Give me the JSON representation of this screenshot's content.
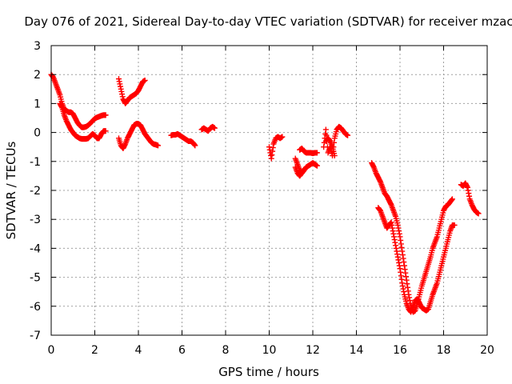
{
  "chart_data": {
    "type": "scatter",
    "title": "Day 076 of 2021, Sidereal Day-to-day VTEC variation (SDTVAR) for receiver mzac",
    "xlabel": "GPS time / hours",
    "ylabel": "SDTVAR / TECUs",
    "xlim": [
      0,
      20
    ],
    "ylim": [
      -7,
      3
    ],
    "xticks": [
      0,
      2,
      4,
      6,
      8,
      10,
      12,
      14,
      16,
      18,
      20
    ],
    "yticks": [
      3,
      2,
      1,
      0,
      -1,
      -2,
      -3,
      -4,
      -5,
      -6,
      -7
    ],
    "grid": true,
    "marker": "plus",
    "color": "#ff0000",
    "series": [
      {
        "segments": [
          [
            [
              0.0,
              2.0
            ],
            [
              0.1,
              1.9
            ],
            [
              0.2,
              1.7
            ],
            [
              0.3,
              1.5
            ],
            [
              0.4,
              1.3
            ],
            [
              0.5,
              1.0
            ],
            [
              0.6,
              0.8
            ],
            [
              0.7,
              0.75
            ],
            [
              0.8,
              0.7
            ],
            [
              0.9,
              0.7
            ],
            [
              1.0,
              0.65
            ],
            [
              1.1,
              0.5
            ],
            [
              1.2,
              0.35
            ],
            [
              1.3,
              0.25
            ],
            [
              1.4,
              0.18
            ],
            [
              1.5,
              0.18
            ],
            [
              1.6,
              0.2
            ],
            [
              1.7,
              0.25
            ],
            [
              1.8,
              0.32
            ],
            [
              1.9,
              0.4
            ],
            [
              2.0,
              0.48
            ],
            [
              2.1,
              0.52
            ],
            [
              2.2,
              0.55
            ],
            [
              2.3,
              0.58
            ],
            [
              2.4,
              0.6
            ],
            [
              2.5,
              0.6
            ]
          ],
          [
            [
              0.4,
              1.0
            ],
            [
              0.5,
              0.85
            ],
            [
              0.6,
              0.6
            ],
            [
              0.7,
              0.4
            ],
            [
              0.8,
              0.25
            ],
            [
              0.9,
              0.1
            ],
            [
              1.0,
              0.0
            ],
            [
              1.1,
              -0.1
            ],
            [
              1.2,
              -0.15
            ],
            [
              1.3,
              -0.2
            ],
            [
              1.4,
              -0.22
            ],
            [
              1.5,
              -0.22
            ],
            [
              1.6,
              -0.22
            ],
            [
              1.7,
              -0.2
            ],
            [
              1.8,
              -0.12
            ],
            [
              1.9,
              -0.05
            ],
            [
              2.0,
              -0.1
            ],
            [
              2.1,
              -0.2
            ],
            [
              2.2,
              -0.2
            ],
            [
              2.3,
              -0.05
            ],
            [
              2.4,
              0.05
            ],
            [
              2.5,
              0.05
            ]
          ],
          [
            [
              3.1,
              1.85
            ],
            [
              3.2,
              1.5
            ],
            [
              3.3,
              1.15
            ],
            [
              3.4,
              1.0
            ],
            [
              3.5,
              1.1
            ],
            [
              3.6,
              1.2
            ],
            [
              3.7,
              1.25
            ],
            [
              3.8,
              1.3
            ],
            [
              3.9,
              1.35
            ],
            [
              4.0,
              1.45
            ],
            [
              4.1,
              1.6
            ],
            [
              4.2,
              1.75
            ],
            [
              4.3,
              1.8
            ]
          ],
          [
            [
              3.1,
              -0.2
            ],
            [
              3.2,
              -0.45
            ],
            [
              3.3,
              -0.55
            ],
            [
              3.4,
              -0.4
            ],
            [
              3.5,
              -0.2
            ],
            [
              3.6,
              -0.05
            ],
            [
              3.7,
              0.1
            ],
            [
              3.8,
              0.25
            ],
            [
              3.9,
              0.3
            ],
            [
              4.0,
              0.3
            ],
            [
              4.1,
              0.25
            ],
            [
              4.2,
              0.1
            ],
            [
              4.3,
              -0.05
            ],
            [
              4.4,
              -0.15
            ],
            [
              4.5,
              -0.25
            ],
            [
              4.6,
              -0.35
            ],
            [
              4.7,
              -0.4
            ],
            [
              4.8,
              -0.42
            ],
            [
              4.9,
              -0.45
            ]
          ],
          [
            [
              5.5,
              -0.1
            ],
            [
              5.6,
              -0.08
            ],
            [
              5.7,
              -0.08
            ],
            [
              5.8,
              -0.05
            ],
            [
              5.9,
              -0.1
            ],
            [
              6.0,
              -0.15
            ],
            [
              6.1,
              -0.2
            ],
            [
              6.2,
              -0.25
            ],
            [
              6.3,
              -0.3
            ],
            [
              6.4,
              -0.3
            ],
            [
              6.5,
              -0.35
            ],
            [
              6.6,
              -0.45
            ]
          ],
          [
            [
              6.9,
              0.1
            ],
            [
              7.0,
              0.15
            ],
            [
              7.1,
              0.1
            ],
            [
              7.2,
              0.05
            ],
            [
              7.3,
              0.15
            ],
            [
              7.4,
              0.2
            ],
            [
              7.5,
              0.15
            ]
          ],
          [
            [
              10.0,
              -0.5
            ],
            [
              10.1,
              -0.9
            ],
            [
              10.2,
              -0.4
            ],
            [
              10.3,
              -0.2
            ],
            [
              10.4,
              -0.15
            ],
            [
              10.5,
              -0.2
            ],
            [
              10.6,
              -0.15
            ]
          ],
          [
            [
              11.2,
              -1.2
            ],
            [
              11.3,
              -1.4
            ],
            [
              11.4,
              -1.5
            ],
            [
              11.5,
              -1.4
            ],
            [
              11.6,
              -1.3
            ],
            [
              11.7,
              -1.2
            ],
            [
              11.8,
              -1.15
            ],
            [
              11.9,
              -1.1
            ],
            [
              12.0,
              -1.05
            ],
            [
              12.1,
              -1.1
            ],
            [
              12.2,
              -1.15
            ]
          ],
          [
            [
              11.4,
              -0.6
            ],
            [
              11.5,
              -0.55
            ],
            [
              11.6,
              -0.65
            ],
            [
              11.7,
              -0.7
            ],
            [
              11.8,
              -0.7
            ],
            [
              11.9,
              -0.7
            ],
            [
              12.0,
              -0.72
            ],
            [
              12.1,
              -0.7
            ],
            [
              12.2,
              -0.7
            ]
          ],
          [
            [
              11.2,
              -0.9
            ],
            [
              11.3,
              -1.1
            ],
            [
              11.4,
              -1.3
            ],
            [
              11.5,
              -1.4
            ],
            [
              11.6,
              -1.3
            ],
            [
              11.7,
              -1.2
            ]
          ],
          [
            [
              12.5,
              -0.5
            ],
            [
              12.6,
              0.1
            ],
            [
              12.7,
              -0.7
            ],
            [
              12.8,
              -0.5
            ],
            [
              12.9,
              -0.8
            ],
            [
              13.0,
              -0.2
            ],
            [
              13.1,
              0.1
            ],
            [
              13.2,
              0.2
            ],
            [
              13.3,
              0.15
            ],
            [
              13.4,
              0.05
            ],
            [
              13.5,
              -0.05
            ],
            [
              13.6,
              -0.1
            ]
          ],
          [
            [
              12.6,
              -0.3
            ],
            [
              12.7,
              -0.2
            ],
            [
              12.8,
              -0.3
            ],
            [
              12.9,
              -0.5
            ],
            [
              13.0,
              -0.8
            ]
          ],
          [
            [
              14.7,
              -1.05
            ],
            [
              14.8,
              -1.2
            ],
            [
              14.9,
              -1.4
            ],
            [
              15.0,
              -1.55
            ],
            [
              15.1,
              -1.7
            ],
            [
              15.2,
              -1.9
            ],
            [
              15.3,
              -2.1
            ],
            [
              15.4,
              -2.2
            ],
            [
              15.5,
              -2.35
            ],
            [
              15.6,
              -2.5
            ],
            [
              15.7,
              -2.7
            ],
            [
              15.8,
              -2.9
            ],
            [
              15.9,
              -3.2
            ],
            [
              16.0,
              -3.6
            ],
            [
              16.1,
              -4.1
            ],
            [
              16.2,
              -4.6
            ],
            [
              16.3,
              -5.1
            ],
            [
              16.4,
              -5.6
            ],
            [
              16.5,
              -6.0
            ],
            [
              16.6,
              -6.2
            ],
            [
              16.7,
              -6.15
            ],
            [
              16.8,
              -5.9
            ],
            [
              16.9,
              -5.6
            ],
            [
              17.0,
              -5.3
            ],
            [
              17.1,
              -5.05
            ],
            [
              17.2,
              -4.8
            ],
            [
              17.3,
              -4.55
            ],
            [
              17.4,
              -4.3
            ],
            [
              17.5,
              -4.0
            ],
            [
              17.6,
              -3.8
            ],
            [
              17.7,
              -3.6
            ],
            [
              17.8,
              -3.3
            ],
            [
              17.9,
              -3.0
            ],
            [
              18.0,
              -2.7
            ],
            [
              18.1,
              -2.55
            ],
            [
              18.2,
              -2.5
            ],
            [
              18.3,
              -2.4
            ],
            [
              18.4,
              -2.3
            ]
          ],
          [
            [
              15.0,
              -2.6
            ],
            [
              15.1,
              -2.7
            ],
            [
              15.2,
              -2.9
            ],
            [
              15.3,
              -3.1
            ],
            [
              15.4,
              -3.3
            ],
            [
              15.5,
              -3.2
            ],
            [
              15.6,
              -3.1
            ],
            [
              15.7,
              -3.5
            ],
            [
              15.8,
              -3.9
            ],
            [
              15.9,
              -4.3
            ],
            [
              16.0,
              -4.7
            ],
            [
              16.1,
              -5.2
            ],
            [
              16.2,
              -5.6
            ],
            [
              16.3,
              -5.9
            ],
            [
              16.4,
              -6.1
            ],
            [
              16.5,
              -6.2
            ],
            [
              16.6,
              -6.0
            ],
            [
              16.7,
              -5.8
            ],
            [
              16.8,
              -5.75
            ],
            [
              16.9,
              -5.9
            ],
            [
              17.0,
              -6.05
            ],
            [
              17.1,
              -6.1
            ],
            [
              17.2,
              -6.15
            ],
            [
              17.3,
              -6.1
            ],
            [
              17.4,
              -5.85
            ],
            [
              17.5,
              -5.6
            ],
            [
              17.6,
              -5.4
            ],
            [
              17.7,
              -5.2
            ],
            [
              17.8,
              -4.9
            ],
            [
              17.9,
              -4.6
            ],
            [
              18.0,
              -4.3
            ],
            [
              18.1,
              -4.0
            ],
            [
              18.2,
              -3.7
            ],
            [
              18.3,
              -3.4
            ],
            [
              18.4,
              -3.2
            ],
            [
              18.5,
              -3.2
            ]
          ],
          [
            [
              18.8,
              -1.8
            ],
            [
              18.9,
              -1.85
            ],
            [
              19.0,
              -1.75
            ],
            [
              19.1,
              -1.9
            ],
            [
              19.2,
              -2.3
            ],
            [
              19.3,
              -2.5
            ],
            [
              19.4,
              -2.65
            ],
            [
              19.5,
              -2.75
            ],
            [
              19.6,
              -2.8
            ]
          ]
        ]
      }
    ]
  }
}
